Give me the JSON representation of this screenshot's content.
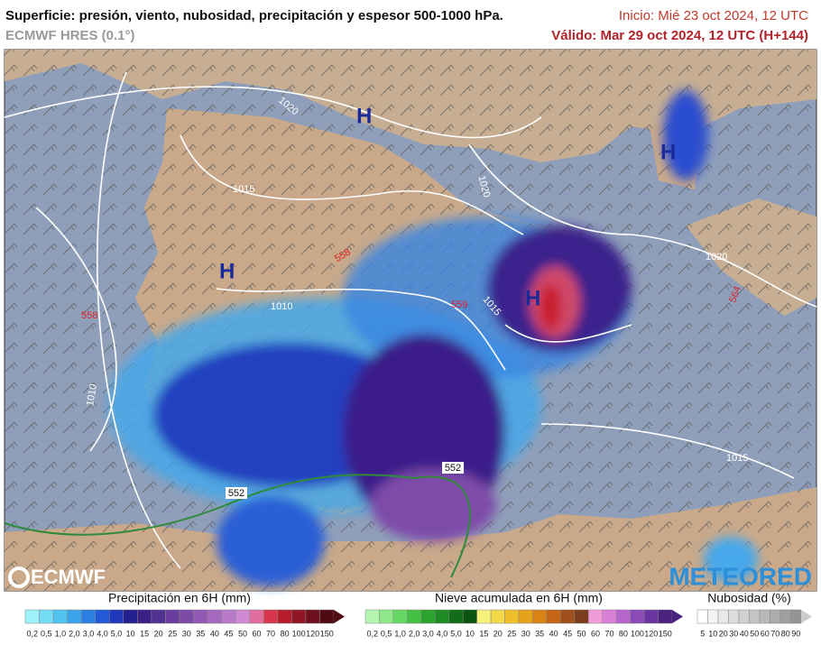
{
  "header": {
    "title": "Superficie: presión, viento, nubosidad, precipitación y espesor 500-1000 hPa.",
    "model": "ECMWF HRES (0.1°)",
    "init": "Inicio: Mié 23 oct 2024, 12 UTC",
    "valid": "Válido: Mar 29 oct 2024, 12 UTC (H+144)"
  },
  "map": {
    "highs": [
      "H",
      "H",
      "H",
      "H"
    ],
    "isobars": [
      "1020",
      "1015",
      "1020",
      "1010",
      "1015",
      "1010",
      "1020",
      "1015"
    ],
    "thickness": [
      "558",
      "558",
      "559",
      "564",
      "552",
      "552"
    ],
    "logos": [
      "ECMWF",
      "METEORED"
    ]
  },
  "legends": [
    {
      "title": "Precipitación en 6H (mm)",
      "labels": [
        "0,2",
        "0,5",
        "1,0",
        "2,0",
        "3,0",
        "4,0",
        "5,0",
        "10",
        "15",
        "20",
        "25",
        "30",
        "35",
        "40",
        "45",
        "50",
        "60",
        "70",
        "80",
        "100",
        "120",
        "150"
      ],
      "colors": [
        "#9ef0fa",
        "#74dcf5",
        "#52c3f0",
        "#3aa3ea",
        "#2b7fe3",
        "#2359d6",
        "#1f37b8",
        "#24208f",
        "#3a1f85",
        "#51308f",
        "#6a3d9f",
        "#7d4aa8",
        "#9159b3",
        "#a569bf",
        "#b97bc9",
        "#d08ad3",
        "#e06fa0",
        "#d7364f",
        "#b51d2c",
        "#8f1424",
        "#6d0f1c",
        "#4f0a14"
      ]
    },
    {
      "title": "Nieve acumulada en 6H (mm)",
      "labels": [
        "0,2",
        "0,5",
        "1,0",
        "2,0",
        "3,0",
        "4,0",
        "5,0",
        "10",
        "15",
        "20",
        "25",
        "30",
        "35",
        "40",
        "45",
        "50",
        "60",
        "70",
        "80",
        "100",
        "120",
        "150"
      ],
      "colors": [
        "#b4f5b0",
        "#8ee88a",
        "#67d764",
        "#44c142",
        "#2ca42c",
        "#1d8a23",
        "#126d18",
        "#0b5510",
        "#f5f17a",
        "#f2d94a",
        "#efbf2b",
        "#e7a21c",
        "#d98315",
        "#c46615",
        "#9e4f1a",
        "#7c3d1d",
        "#f29bd9",
        "#d97fd5",
        "#b565cb",
        "#8c4ab7",
        "#6a35a0",
        "#4a2280"
      ]
    },
    {
      "title": "Nubosidad (%)",
      "labels": [
        "5",
        "10",
        "20",
        "30",
        "40",
        "50",
        "60",
        "70",
        "80",
        "90"
      ],
      "colors": [
        "#ffffff",
        "#f4f4f4",
        "#e8e8e8",
        "#dcdcdc",
        "#d0d0d0",
        "#c4c4c4",
        "#b8b8b8",
        "#acacac",
        "#a0a0a0",
        "#949494"
      ]
    }
  ]
}
